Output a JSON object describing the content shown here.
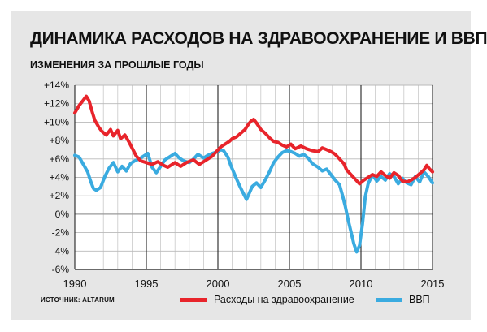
{
  "title": "ДИНАМИКА РАСХОДОВ НА ЗДРАВООХРАНЕНИЕ И ВВП",
  "subtitle": "ИЗМЕНЕНИЯ ЗА ПРОШЛЫЕ ГОДЫ",
  "source": "ИСТОЧНИК: ALTARUM",
  "colors": {
    "health": "#e8242b",
    "gdp": "#3aabe0",
    "background": "#e6e6e6"
  },
  "chart_data": {
    "type": "line",
    "xlim": [
      1990,
      2015
    ],
    "ylim": [
      -6,
      14
    ],
    "x_ticks": [
      1990,
      1995,
      2000,
      2005,
      2010,
      2015
    ],
    "x_tick_labels": [
      "1990",
      "1995",
      "2000",
      "2005",
      "2010",
      "2015"
    ],
    "y_ticks": [
      14,
      12,
      10,
      8,
      6,
      4,
      2,
      0,
      -2,
      -4,
      -6
    ],
    "y_tick_labels": [
      "+14%",
      "+12%",
      "+10%",
      "+8%",
      "+6%",
      "+4%",
      "+2%",
      "0%",
      "-2%",
      "-4%",
      "-6%"
    ],
    "grid": true,
    "legend_position": "bottom",
    "series": [
      {
        "name": "Расходы на здравоохранение",
        "color": "#e8242b",
        "points": [
          [
            1990.0,
            11.0
          ],
          [
            1990.3,
            11.8
          ],
          [
            1990.6,
            12.4
          ],
          [
            1990.8,
            12.8
          ],
          [
            1991.0,
            12.3
          ],
          [
            1991.2,
            11.2
          ],
          [
            1991.4,
            10.2
          ],
          [
            1991.7,
            9.4
          ],
          [
            1991.9,
            9.0
          ],
          [
            1992.2,
            8.6
          ],
          [
            1992.5,
            9.2
          ],
          [
            1992.7,
            8.5
          ],
          [
            1993.0,
            9.1
          ],
          [
            1993.2,
            8.2
          ],
          [
            1993.5,
            8.6
          ],
          [
            1993.8,
            7.8
          ],
          [
            1994.0,
            7.2
          ],
          [
            1994.3,
            6.3
          ],
          [
            1994.6,
            5.8
          ],
          [
            1995.0,
            5.6
          ],
          [
            1995.4,
            5.4
          ],
          [
            1995.8,
            5.7
          ],
          [
            1996.2,
            5.3
          ],
          [
            1996.5,
            5.1
          ],
          [
            1997.0,
            5.6
          ],
          [
            1997.4,
            5.2
          ],
          [
            1997.8,
            5.6
          ],
          [
            1998.3,
            5.9
          ],
          [
            1998.7,
            5.4
          ],
          [
            1999.0,
            5.7
          ],
          [
            1999.3,
            6.0
          ],
          [
            1999.6,
            6.3
          ],
          [
            1999.9,
            6.8
          ],
          [
            2000.2,
            7.3
          ],
          [
            2000.5,
            7.6
          ],
          [
            2000.8,
            7.9
          ],
          [
            2001.0,
            8.2
          ],
          [
            2001.3,
            8.4
          ],
          [
            2001.6,
            8.8
          ],
          [
            2001.9,
            9.2
          ],
          [
            2002.1,
            9.7
          ],
          [
            2002.3,
            10.1
          ],
          [
            2002.5,
            10.3
          ],
          [
            2002.7,
            9.9
          ],
          [
            2003.0,
            9.2
          ],
          [
            2003.3,
            8.8
          ],
          [
            2003.6,
            8.3
          ],
          [
            2003.9,
            7.9
          ],
          [
            2004.2,
            7.8
          ],
          [
            2004.5,
            7.5
          ],
          [
            2004.8,
            7.3
          ],
          [
            2005.1,
            7.6
          ],
          [
            2005.4,
            7.1
          ],
          [
            2005.8,
            7.4
          ],
          [
            2006.2,
            7.1
          ],
          [
            2006.6,
            6.9
          ],
          [
            2007.0,
            6.8
          ],
          [
            2007.3,
            7.2
          ],
          [
            2007.6,
            7.0
          ],
          [
            2007.9,
            6.8
          ],
          [
            2008.2,
            6.5
          ],
          [
            2008.5,
            6.0
          ],
          [
            2008.8,
            5.5
          ],
          [
            2009.0,
            4.8
          ],
          [
            2009.3,
            4.3
          ],
          [
            2009.6,
            3.8
          ],
          [
            2009.9,
            3.3
          ],
          [
            2010.2,
            3.7
          ],
          [
            2010.5,
            4.0
          ],
          [
            2010.8,
            4.3
          ],
          [
            2011.1,
            4.1
          ],
          [
            2011.4,
            4.6
          ],
          [
            2011.7,
            4.2
          ],
          [
            2012.0,
            3.9
          ],
          [
            2012.3,
            4.5
          ],
          [
            2012.6,
            4.2
          ],
          [
            2012.9,
            3.6
          ],
          [
            2013.2,
            3.5
          ],
          [
            2013.5,
            3.7
          ],
          [
            2013.8,
            4.0
          ],
          [
            2014.1,
            4.4
          ],
          [
            2014.4,
            4.8
          ],
          [
            2014.6,
            5.3
          ],
          [
            2014.8,
            4.9
          ],
          [
            2015.0,
            4.6
          ]
        ]
      },
      {
        "name": "ВВП",
        "color": "#3aabe0",
        "points": [
          [
            1990.0,
            6.4
          ],
          [
            1990.3,
            6.2
          ],
          [
            1990.6,
            5.4
          ],
          [
            1990.9,
            4.6
          ],
          [
            1991.1,
            3.6
          ],
          [
            1991.3,
            2.8
          ],
          [
            1991.5,
            2.6
          ],
          [
            1991.8,
            2.9
          ],
          [
            1992.1,
            4.1
          ],
          [
            1992.4,
            5.0
          ],
          [
            1992.7,
            5.6
          ],
          [
            1993.0,
            4.6
          ],
          [
            1993.3,
            5.2
          ],
          [
            1993.6,
            4.7
          ],
          [
            1993.9,
            5.5
          ],
          [
            1994.2,
            5.8
          ],
          [
            1994.5,
            6.0
          ],
          [
            1994.8,
            6.3
          ],
          [
            1995.1,
            6.6
          ],
          [
            1995.4,
            5.1
          ],
          [
            1995.7,
            4.5
          ],
          [
            1996.0,
            5.2
          ],
          [
            1996.3,
            5.9
          ],
          [
            1996.7,
            6.3
          ],
          [
            1997.0,
            6.6
          ],
          [
            1997.3,
            6.1
          ],
          [
            1997.6,
            5.8
          ],
          [
            1998.0,
            5.6
          ],
          [
            1998.3,
            6.0
          ],
          [
            1998.6,
            6.5
          ],
          [
            1999.0,
            6.1
          ],
          [
            1999.3,
            6.4
          ],
          [
            1999.6,
            6.6
          ],
          [
            2000.0,
            6.8
          ],
          [
            2000.2,
            7.0
          ],
          [
            2000.4,
            6.9
          ],
          [
            2000.7,
            6.2
          ],
          [
            2000.9,
            5.3
          ],
          [
            2001.2,
            4.2
          ],
          [
            2001.4,
            3.5
          ],
          [
            2001.6,
            2.8
          ],
          [
            2001.8,
            2.2
          ],
          [
            2002.0,
            1.6
          ],
          [
            2002.2,
            2.3
          ],
          [
            2002.4,
            3.0
          ],
          [
            2002.7,
            3.4
          ],
          [
            2003.0,
            2.9
          ],
          [
            2003.3,
            3.7
          ],
          [
            2003.6,
            4.6
          ],
          [
            2003.9,
            5.6
          ],
          [
            2004.2,
            6.2
          ],
          [
            2004.5,
            6.7
          ],
          [
            2004.8,
            6.9
          ],
          [
            2005.1,
            6.8
          ],
          [
            2005.4,
            6.6
          ],
          [
            2005.7,
            6.3
          ],
          [
            2006.0,
            6.5
          ],
          [
            2006.3,
            6.1
          ],
          [
            2006.6,
            5.5
          ],
          [
            2007.0,
            5.1
          ],
          [
            2007.3,
            4.7
          ],
          [
            2007.6,
            4.9
          ],
          [
            2007.9,
            4.3
          ],
          [
            2008.2,
            3.7
          ],
          [
            2008.5,
            3.2
          ],
          [
            2008.7,
            2.1
          ],
          [
            2008.9,
            0.9
          ],
          [
            2009.1,
            -0.6
          ],
          [
            2009.3,
            -1.9
          ],
          [
            2009.5,
            -3.2
          ],
          [
            2009.7,
            -4.1
          ],
          [
            2009.9,
            -3.4
          ],
          [
            2010.1,
            -1.1
          ],
          [
            2010.3,
            1.9
          ],
          [
            2010.5,
            3.3
          ],
          [
            2010.8,
            4.3
          ],
          [
            2011.1,
            3.6
          ],
          [
            2011.4,
            4.1
          ],
          [
            2011.7,
            3.7
          ],
          [
            2012.0,
            4.4
          ],
          [
            2012.3,
            4.1
          ],
          [
            2012.6,
            3.3
          ],
          [
            2012.9,
            3.9
          ],
          [
            2013.2,
            3.4
          ],
          [
            2013.5,
            3.2
          ],
          [
            2013.8,
            4.1
          ],
          [
            2014.1,
            3.5
          ],
          [
            2014.4,
            4.6
          ],
          [
            2014.7,
            4.1
          ],
          [
            2015.0,
            3.4
          ]
        ]
      }
    ]
  }
}
